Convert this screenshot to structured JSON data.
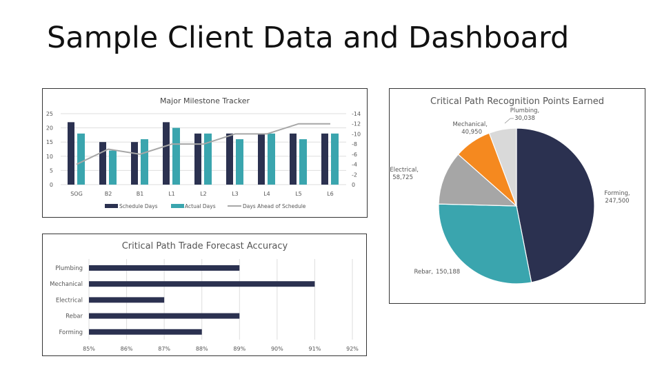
{
  "page": {
    "title": "Sample Client Data and Dashboard"
  },
  "colors": {
    "navy": "#2B3150",
    "teal": "#3AA5AE",
    "gray": "#A6A6A6",
    "orange": "#F5891F",
    "light": "#D9D9D9"
  },
  "chart_data": [
    {
      "type": "bar",
      "title": "Major Milestone Tracker",
      "categories": [
        "SOG",
        "B2",
        "B1",
        "L1",
        "L2",
        "L3",
        "L4",
        "L5",
        "L6"
      ],
      "series": [
        {
          "name": "Schedule Days",
          "kind": "bar",
          "axis": "left",
          "values": [
            22,
            15,
            15,
            22,
            18,
            18,
            18,
            18,
            18
          ]
        },
        {
          "name": "Actual Days",
          "kind": "bar",
          "axis": "left",
          "values": [
            18,
            12,
            16,
            20,
            18,
            16,
            18,
            16,
            18
          ]
        },
        {
          "name": "Days Ahead of Schedule",
          "kind": "line",
          "axis": "right",
          "values": [
            -4,
            -7,
            -6,
            -8,
            -8,
            -10,
            -10,
            -12,
            -12
          ]
        }
      ],
      "yticks": [
        "0",
        "5",
        "10",
        "15",
        "20",
        "25"
      ],
      "y2ticks": [
        "0",
        "-2",
        "-4",
        "-6",
        "-8",
        "-10",
        "-12",
        "-14"
      ],
      "ylim": [
        0,
        25
      ],
      "y2lim": [
        0,
        -14
      ],
      "legend": "bottom",
      "grid": true
    },
    {
      "type": "bar",
      "orientation": "horizontal",
      "title": "Critical Path Trade Forecast Accuracy",
      "categories": [
        "Plumbing",
        "Mechanical",
        "Electrical",
        "Rebar",
        "Forming"
      ],
      "values": [
        89,
        91,
        87,
        89,
        88
      ],
      "xticks": [
        "85%",
        "86%",
        "87%",
        "88%",
        "89%",
        "90%",
        "91%",
        "92%"
      ],
      "xlim": [
        85,
        92
      ],
      "grid": true
    },
    {
      "type": "pie",
      "title": "Critical Path Recognition Points Earned",
      "slices": [
        {
          "label": "Forming,",
          "value_text": "247,500",
          "value": 247500
        },
        {
          "label": "Rebar,",
          "value_text": "150,188",
          "value": 150188
        },
        {
          "label": "Electrical,",
          "value_text": "58,725",
          "value": 58725
        },
        {
          "label": "Mechanical,",
          "value_text": "40,950",
          "value": 40950
        },
        {
          "label": "Plumbing,",
          "value_text": "30,038",
          "value": 30038
        }
      ]
    }
  ]
}
